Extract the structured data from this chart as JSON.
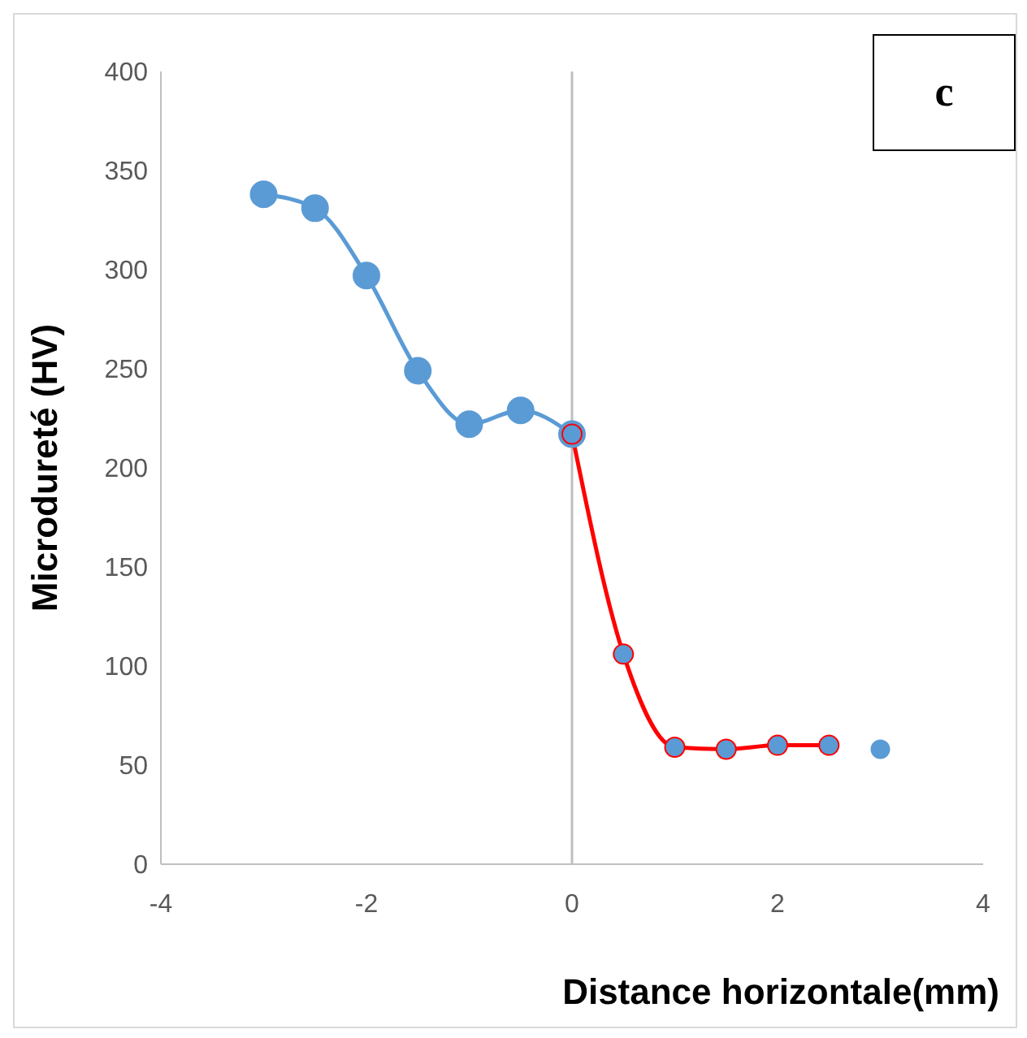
{
  "chart_data": {
    "type": "line",
    "xlabel": "Distance horizontale(mm)",
    "ylabel": "Microdureté (HV)",
    "annotations": [
      "c"
    ],
    "xlim": [
      -4,
      4
    ],
    "xticks": [
      -4,
      -2,
      0,
      2,
      4
    ],
    "ylim": [
      0,
      400
    ],
    "yticks": [
      0,
      50,
      100,
      150,
      200,
      250,
      300,
      350,
      400
    ],
    "grid": false,
    "marker": "circle",
    "line_style": "solid",
    "ref_lines": [
      {
        "axis": "x",
        "value": 0,
        "color": "#bfbfbf"
      }
    ],
    "series": [
      {
        "color": "#5b9bd5",
        "x": [
          -3,
          -2.5,
          -2,
          -1.5,
          -1,
          -0.5,
          0
        ],
        "values": [
          338,
          331,
          297,
          249,
          222,
          229,
          217
        ]
      },
      {
        "color": "#ff0000",
        "x": [
          0,
          0.5,
          1,
          1.5,
          2,
          2.5
        ],
        "values": [
          217,
          106,
          59,
          58,
          60,
          60
        ]
      },
      {
        "type": "scatter",
        "color": "#5b9bd5",
        "x": [
          3
        ],
        "values": [
          58
        ]
      }
    ]
  }
}
